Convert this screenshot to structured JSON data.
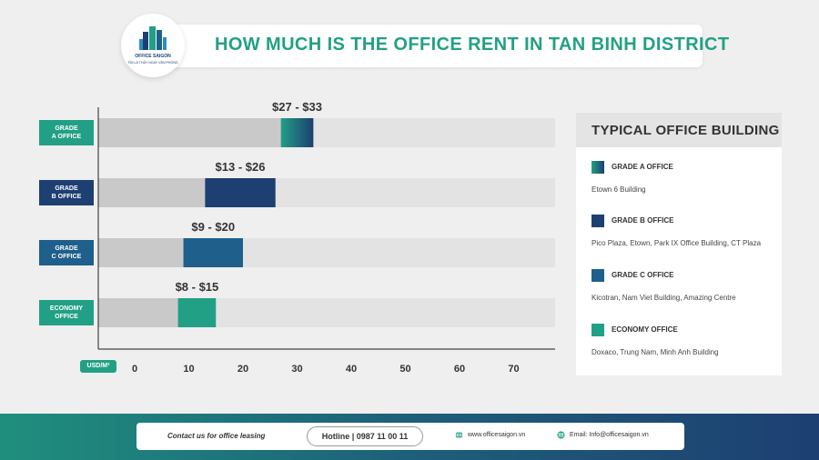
{
  "header": {
    "title": "HOW MUCH IS THE OFFICE RENT IN TAN BINH DISTRICT",
    "logo_name": "OFFICE SAIGON",
    "logo_sub": "TÌM LÀ THẤY NGAY VĂN PHÒNG"
  },
  "chart_data": {
    "type": "bar",
    "orientation": "horizontal",
    "categories": [
      "GRADE A OFFICE",
      "GRADE B OFFICE",
      "GRADE C OFFICE",
      "ECONOMY OFFICE"
    ],
    "category_lines": [
      [
        "GRADE",
        "A OFFICE"
      ],
      [
        "GRADE",
        "B OFFICE"
      ],
      [
        "GRADE",
        "C OFFICE"
      ],
      [
        "ECONOMY",
        "OFFICE"
      ]
    ],
    "ranges": [
      [
        27,
        33
      ],
      [
        13,
        26
      ],
      [
        9,
        20
      ],
      [
        8,
        15
      ]
    ],
    "value_labels": [
      "$27 - $33",
      "$13 - $26",
      "$9 - $20",
      "$8 - $15"
    ],
    "x_ticks": [
      0,
      10,
      20,
      30,
      40,
      50,
      60,
      70
    ],
    "x_unit": "USD/M²",
    "xlim": [
      0,
      78
    ],
    "grid": false,
    "colors": {
      "grade_a_start": "#22a085",
      "grade_a_end": "#1d3f72",
      "grade_b": "#1d3f72",
      "grade_c": "#1f5f8b",
      "economy": "#22a085",
      "track": "#e3e3e3",
      "track_dark": "#c9c9c9"
    }
  },
  "legend": {
    "title": "TYPICAL OFFICE BUILDING",
    "items": [
      {
        "name": "GRADE A OFFICE",
        "desc": "Etown 6 Building",
        "color": "gradient"
      },
      {
        "name": "GRADE B OFFICE",
        "desc": "Pico Plaza, Etown, Park IX Office Building, CT Plaza",
        "color": "#1d3f72"
      },
      {
        "name": "GRADE C OFFICE",
        "desc": "Kicotran, Nam Viet Building, Amazing Centre",
        "color": "#1f5f8b"
      },
      {
        "name": "ECONOMY OFFICE",
        "desc": "Doxaco, Trung Nam, Minh Anh Building",
        "color": "#22a085"
      }
    ]
  },
  "footer": {
    "contact": "Contact us for office leasing",
    "hotline": "Hotline | 0987 11 00 11",
    "website": "www.officesaigon.vn",
    "email": "Email: Info@officesaigon.vn"
  }
}
